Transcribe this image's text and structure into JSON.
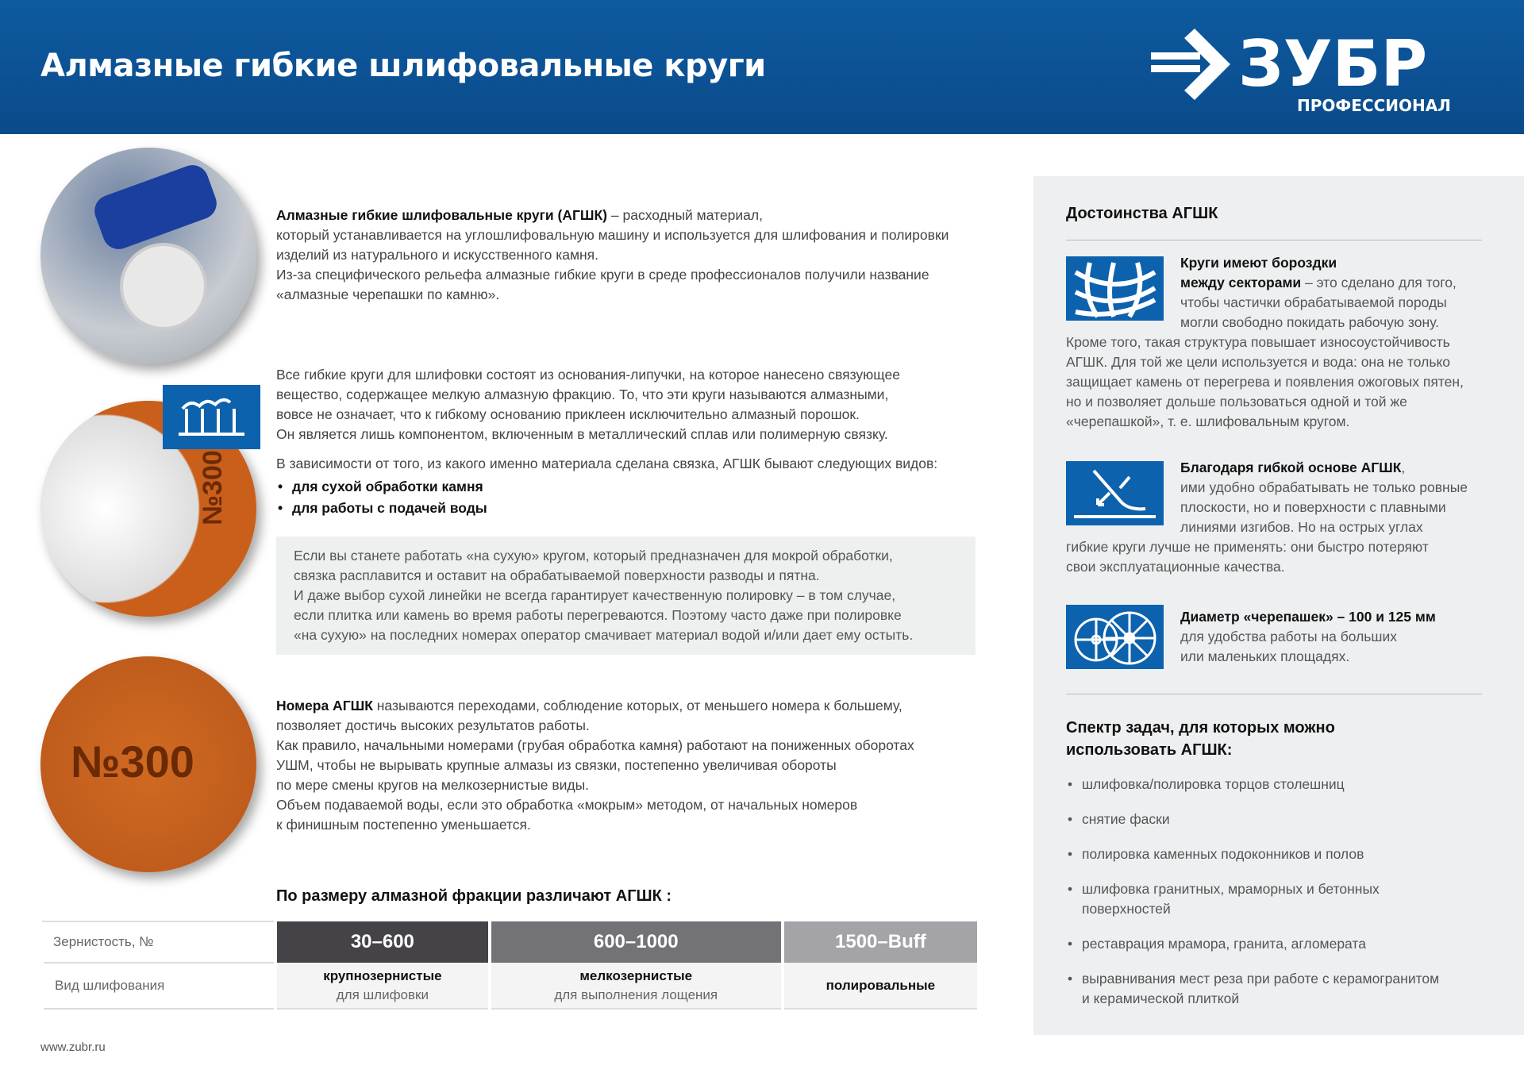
{
  "header": {
    "title": "Алмазные гибкие шлифовальные круги",
    "logo_text": "ЗУБР",
    "logo_sub": "ПРОФЕССИОНАЛ"
  },
  "intro": {
    "bold": "Алмазные гибкие шлифовальные круги (АГШК)",
    "rest": " – расходный материал,",
    "lines": [
      "который устанавливается на углошлифовальную машину и используется для шлифования и полировки",
      "изделий из натурального и искусственного камня.",
      "Из-за специфического рельефа алмазные гибкие круги в среде профессионалов получили название",
      "«алмазные черепашки по камню»."
    ]
  },
  "composition": {
    "lines": [
      "Все гибкие круги для шлифовки состоят из основания-липучки, на которое нанесено связующее",
      "вещество, содержащее мелкую алмазную фракцию. То, что эти круги называются алмазными,",
      "вовсе не означает, что к гибкому основанию приклеен исключительно алмазный порошок.",
      "Он является лишь компонентом, включенным в металлический сплав или полимерную связку."
    ],
    "types_intro": "В зависимости от того, из какого именно материала сделана связка, АГШК бывают следующих видов:",
    "types": [
      "для сухой обработки камня",
      "для работы с подачей воды"
    ],
    "disc_label": "№300"
  },
  "note": {
    "lines": [
      "Если вы станете работать «на сухую» кругом, который предназначен для мокрой обработки,",
      "связка расплавится и оставит на обрабатываемой поверхности разводы и пятна.",
      "И даже выбор сухой линейки не всегда гарантирует качественную полировку – в том случае,",
      "если плитка или камень во время работы перегреваются. Поэтому часто даже при полировке",
      "«на сухую» на последних номерах оператор смачивает материал водой и/или дает ему остыть."
    ]
  },
  "numbers": {
    "bold": "Номера АГШК",
    "rest": " называются переходами, соблюдение которых, от меньшего номера к большему,",
    "lines": [
      "позволяет достичь высоких результатов работы.",
      "Как правило, начальными номерами (грубая обработка камня) работают на пониженных оборотах",
      "УШМ, чтобы не вырывать крупные алмазы из связки, постепенно увеличивая обороты",
      "по мере смены кругов на мелкозернистые виды.",
      "Объем подаваемой воды, если это обработка «мокрым» методом, от начальных номеров",
      "к финишным постепенно уменьшается."
    ],
    "disc_label": "№300"
  },
  "table": {
    "title": "По размеру алмазной фракции различают АГШК :",
    "row1_label": "Зернистость, №",
    "row2_label": "Вид шлифования",
    "columns": [
      {
        "range": "30–600",
        "kind": "крупнозернистые",
        "purpose": "для шлифовки",
        "color": "#454348"
      },
      {
        "range": "600–1000",
        "kind": "мелкозернистые",
        "purpose": "для выполнения лощения",
        "color": "#737276"
      },
      {
        "range": "1500–Buff",
        "kind": "полировальные",
        "purpose": "",
        "color": "#a4a3a7"
      }
    ]
  },
  "footer": {
    "url": "www.zubr.ru"
  },
  "sidebar": {
    "title": "Достоинства АГШК",
    "b1": {
      "bold": "Круги имеют бороздки",
      "bold2": "между секторами",
      "rest": " – это сделано для того,",
      "lines": [
        "чтобы частички обрабатываемой породы",
        "могли свободно покидать рабочую зону.",
        "Кроме того, такая структура повышает износоустойчивость",
        "АГШК. Для той же цели используется и вода: она не только",
        "защищает камень от перегрева и появления ожоговых пятен,",
        "но и позволяет дольше пользоваться одной и той же",
        "«черепашкой», т. е. шлифовальным кругом."
      ]
    },
    "b2": {
      "bold": "Благодаря гибкой основе АГШК",
      "rest": ",",
      "lines": [
        "ими удобно обрабатывать не только ровные",
        "плоскости, но и поверхности с плавными",
        "линиями изгибов. Но на острых углах",
        "гибкие круги лучше не применять: они быстро потеряют",
        "свои эксплуатационные качества."
      ]
    },
    "b3": {
      "bold": "Диаметр «черепашек» – 100 и 125 мм",
      "lines": [
        "для удобства работы на больших",
        "или маленьких площадях."
      ]
    },
    "tasks_title": [
      "Спектр задач, для которых можно",
      "использовать АГШК:"
    ],
    "tasks": [
      [
        "шлифовка/полировка торцов столешниц"
      ],
      [
        "снятие фаски"
      ],
      [
        "полировка каменных подоконников и полов"
      ],
      [
        "шлифовка гранитных, мраморных и бетонных",
        "поверхностей"
      ],
      [
        "реставрация мрамора, гранита, агломерата"
      ],
      [
        "выравнивания мест реза при работе с керамогранитом",
        "и керамической плиткой"
      ]
    ]
  },
  "colors": {
    "brand_blue": "#0d62ae",
    "disc_orange": "#c95f1a"
  }
}
